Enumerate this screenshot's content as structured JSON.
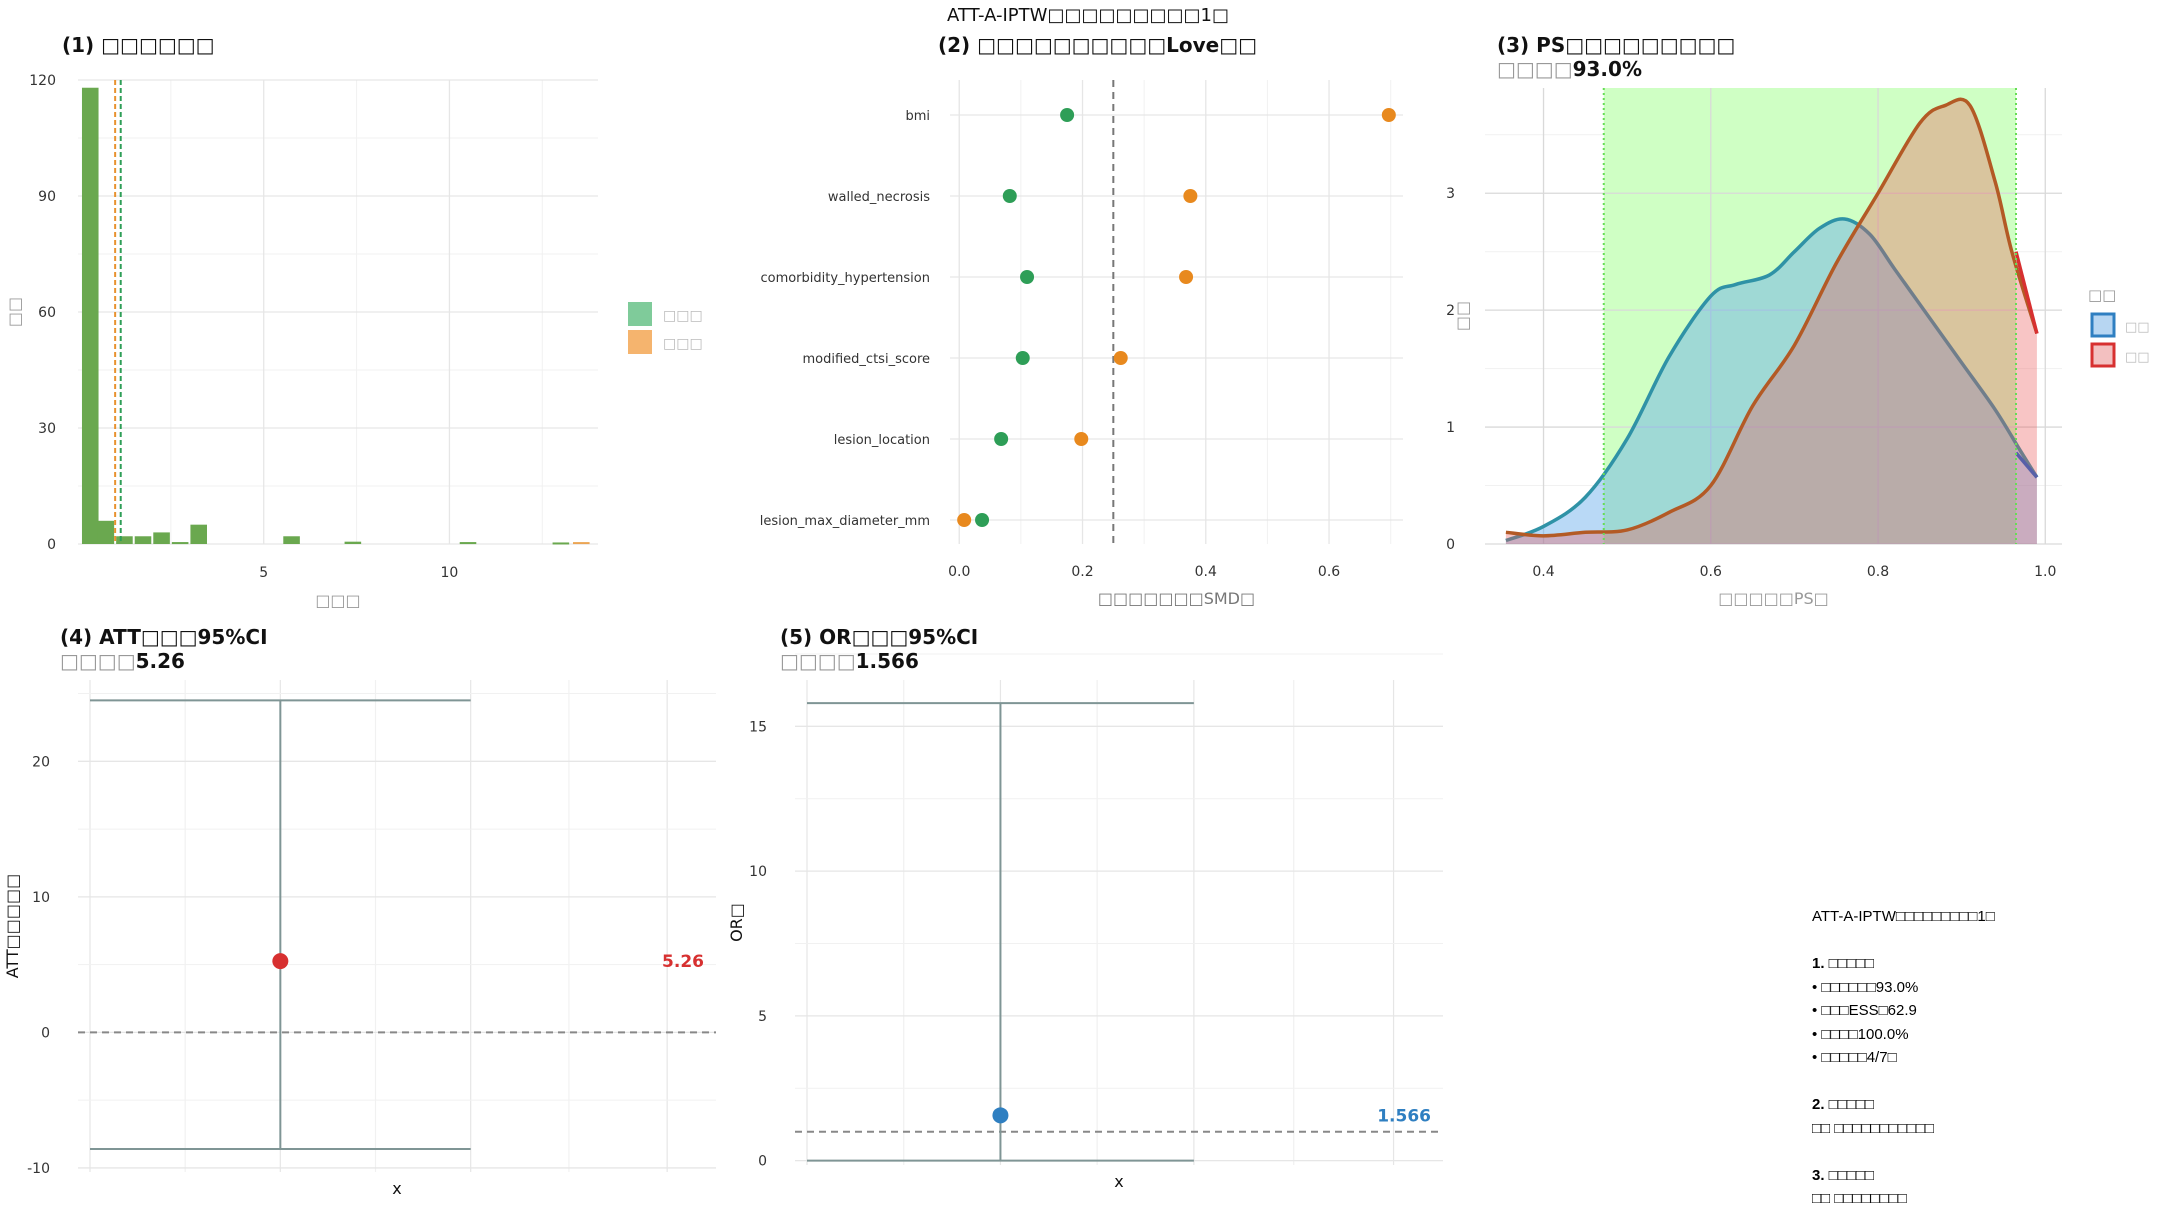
{
  "figure": {
    "title": "ATT-A-IPTW□□□□□□□□□1□"
  },
  "chart_data": [
    {
      "id": "hist",
      "type": "bar",
      "title": "(1) □□□□□□",
      "xlabel": "□□□",
      "ylabel": "□□",
      "xlim": [
        0,
        14
      ],
      "ylim": [
        0,
        120
      ],
      "xticks": [
        "5",
        "10"
      ],
      "yticks": [
        "0",
        "30",
        "60",
        "90",
        "120"
      ],
      "legend": {
        "position": "right",
        "entries": [
          "□□□",
          "□□□"
        ],
        "colors": [
          "#7fcb9a",
          "#f5b46e"
        ]
      },
      "bins": [
        {
          "x": 0.33,
          "value": 118
        },
        {
          "x": 0.75,
          "value": 6
        },
        {
          "x": 1.25,
          "value": 2
        },
        {
          "x": 1.75,
          "value": 2
        },
        {
          "x": 2.25,
          "value": 3
        },
        {
          "x": 2.75,
          "value": 0.5
        },
        {
          "x": 3.25,
          "value": 5
        },
        {
          "x": 5.75,
          "value": 2
        },
        {
          "x": 7.4,
          "value": 0.6
        },
        {
          "x": 10.5,
          "value": 0.5
        },
        {
          "x": 13.0,
          "value": 0.4
        }
      ],
      "bins_orange": [
        {
          "x": 13.55,
          "value": 0.5
        }
      ],
      "vlines": [
        1.0,
        1.15
      ],
      "colors": {
        "bar": "#6aa84f",
        "orange": "#e8922e",
        "green_line": "#2e9e57"
      }
    },
    {
      "id": "love",
      "type": "scatter",
      "title": "(2) □□□□□□□□□□Love□□",
      "xlabel": "□□□□□□□SMD□",
      "xlim": [
        -0.015,
        0.72
      ],
      "xticks": [
        "0.0",
        "0.2",
        "0.4",
        "0.6"
      ],
      "threshold": 0.25,
      "covariates": [
        "bmi",
        "walled_necrosis",
        "comorbidity_hypertension",
        "modified_ctsi_score",
        "lesion_location",
        "lesion_max_diameter_mm"
      ],
      "series": [
        {
          "values": [
            0.175,
            0.082,
            0.11,
            0.103,
            0.068,
            0.037
          ],
          "color": "#2e9e57"
        },
        {
          "values": [
            0.697,
            0.375,
            0.368,
            0.262,
            0.198,
            0.008
          ],
          "color": "#e8891e"
        }
      ]
    },
    {
      "id": "ps",
      "type": "area",
      "title": "(3) PS□□□□□□□□□",
      "subtitle_prefix": "□□□□",
      "subtitle_value": "93.0%",
      "xlabel": "□□□□□PS□",
      "ylabel": "□□",
      "xlim": [
        0.33,
        1.02
      ],
      "ylim": [
        0,
        3.9
      ],
      "xticks": [
        "0.4",
        "0.6",
        "0.8",
        "1.0"
      ],
      "yticks": [
        "0",
        "1",
        "2",
        "3"
      ],
      "common_support": [
        0.472,
        0.965
      ],
      "legend": {
        "title": "□□",
        "entries": [
          "□□",
          "□□"
        ],
        "colors": [
          "#2f7fc1",
          "#d73030"
        ]
      },
      "series": [
        {
          "x": [
            0.355,
            0.4,
            0.45,
            0.5,
            0.55,
            0.6,
            0.63,
            0.67,
            0.7,
            0.73,
            0.76,
            0.79,
            0.82,
            0.86,
            0.9,
            0.94,
            0.97,
            0.99
          ],
          "values": [
            0.03,
            0.15,
            0.4,
            0.9,
            1.6,
            2.12,
            2.22,
            2.3,
            2.5,
            2.7,
            2.78,
            2.65,
            2.35,
            1.95,
            1.55,
            1.15,
            0.8,
            0.57
          ]
        },
        {
          "x": [
            0.355,
            0.4,
            0.45,
            0.5,
            0.55,
            0.6,
            0.65,
            0.7,
            0.75,
            0.8,
            0.85,
            0.88,
            0.91,
            0.94,
            0.96,
            0.99
          ],
          "values": [
            0.1,
            0.07,
            0.1,
            0.12,
            0.27,
            0.5,
            1.18,
            1.7,
            2.4,
            3.0,
            3.6,
            3.75,
            3.75,
            3.1,
            2.5,
            1.8
          ]
        }
      ]
    },
    {
      "id": "att",
      "type": "scatter",
      "title": "(4) ATT□□□95%CI",
      "subtitle_prefix": "□□□□",
      "subtitle_value": "5.26",
      "xlabel": "x",
      "ylabel": "ATT□□□□□",
      "ylim": [
        -10.3,
        26
      ],
      "yticks": [
        "-10",
        "0",
        "10",
        "20"
      ],
      "estimate": 5.26,
      "ci": [
        -8.6,
        24.5
      ],
      "label": "5.26",
      "color": "#d73030"
    },
    {
      "id": "or",
      "type": "scatter",
      "title": "(5) OR□□□95%CI",
      "subtitle_prefix": "□□□□",
      "subtitle_value": "1.566",
      "xlabel": "x",
      "ylabel": "OR□",
      "ylim": [
        -0.15,
        16.6
      ],
      "yticks": [
        "0",
        "5",
        "10",
        "15"
      ],
      "estimate": 1.566,
      "ci": [
        0,
        15.8
      ],
      "reference": 1,
      "label": "1.566",
      "color": "#2f7fc1"
    }
  ],
  "summary": {
    "title": "ATT-A-IPTW□□□□□□□□□1□",
    "s1_head": "1. □□□□□",
    "s1_lines": [
      "• □□□□□□93.0%",
      "• □□□ESS□62.9",
      "• □□□□100.0%",
      "• □□□□□4/7□"
    ],
    "s2_head": "2. □□□□□",
    "s2_line": "□□  □□□□□□□□□□□",
    "s3_head": "3. □□□□□",
    "s3_line": "□□  □□□□□□□□"
  }
}
